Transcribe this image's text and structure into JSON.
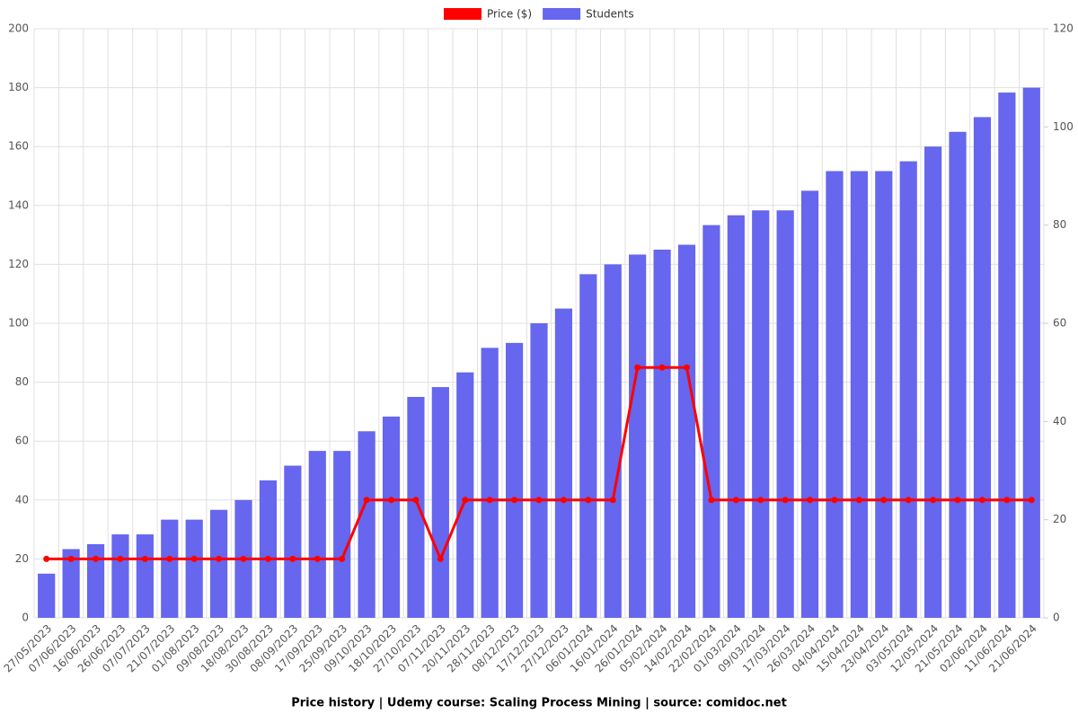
{
  "chart_data": {
    "type": "bar-line",
    "title": "Price history | Udemy course: Scaling Process Mining | source: comidoc.net",
    "categories": [
      "27/05/2023",
      "07/06/2023",
      "16/06/2023",
      "26/06/2023",
      "07/07/2023",
      "21/07/2023",
      "01/08/2023",
      "09/08/2023",
      "18/08/2023",
      "30/08/2023",
      "08/09/2023",
      "17/09/2023",
      "25/09/2023",
      "09/10/2023",
      "18/10/2023",
      "27/10/2023",
      "07/11/2023",
      "20/11/2023",
      "28/11/2023",
      "08/12/2023",
      "17/12/2023",
      "27/12/2023",
      "06/01/2024",
      "16/01/2024",
      "26/01/2024",
      "05/02/2024",
      "14/02/2024",
      "22/02/2024",
      "01/03/2024",
      "09/03/2024",
      "17/03/2024",
      "26/03/2024",
      "04/04/2024",
      "15/04/2024",
      "23/04/2024",
      "03/05/2024",
      "12/05/2024",
      "21/05/2024",
      "02/06/2024",
      "11/06/2024",
      "21/06/2024"
    ],
    "series": [
      {
        "name": "Price ($)",
        "color": "#ff0000",
        "type": "line",
        "axis": "y",
        "values": [
          20,
          20,
          20,
          20,
          20,
          20,
          20,
          20,
          20,
          20,
          20,
          20,
          20,
          40,
          40,
          40,
          20,
          40,
          40,
          40,
          40,
          40,
          40,
          40,
          85,
          85,
          85,
          40,
          40,
          40,
          40,
          40,
          40,
          40,
          40,
          40,
          40,
          40,
          40,
          40,
          40
        ]
      },
      {
        "name": "Students",
        "color": "#6666ee",
        "type": "bar",
        "axis": "y2",
        "values": [
          9,
          14,
          15,
          17,
          17,
          20,
          20,
          22,
          24,
          28,
          31,
          34,
          34,
          38,
          41,
          45,
          47,
          50,
          55,
          56,
          60,
          63,
          70,
          72,
          74,
          75,
          76,
          80,
          82,
          83,
          83,
          87,
          91,
          91,
          91,
          93,
          96,
          99,
          102,
          107,
          108
        ]
      }
    ],
    "ylim": [
      0,
      200
    ],
    "yticks": [
      0,
      20,
      40,
      60,
      80,
      100,
      120,
      140,
      160,
      180,
      200
    ],
    "y2lim": [
      0,
      120
    ],
    "y2ticks": [
      0,
      20,
      40,
      60,
      80,
      100,
      120
    ],
    "grid": true,
    "legend": "top"
  }
}
